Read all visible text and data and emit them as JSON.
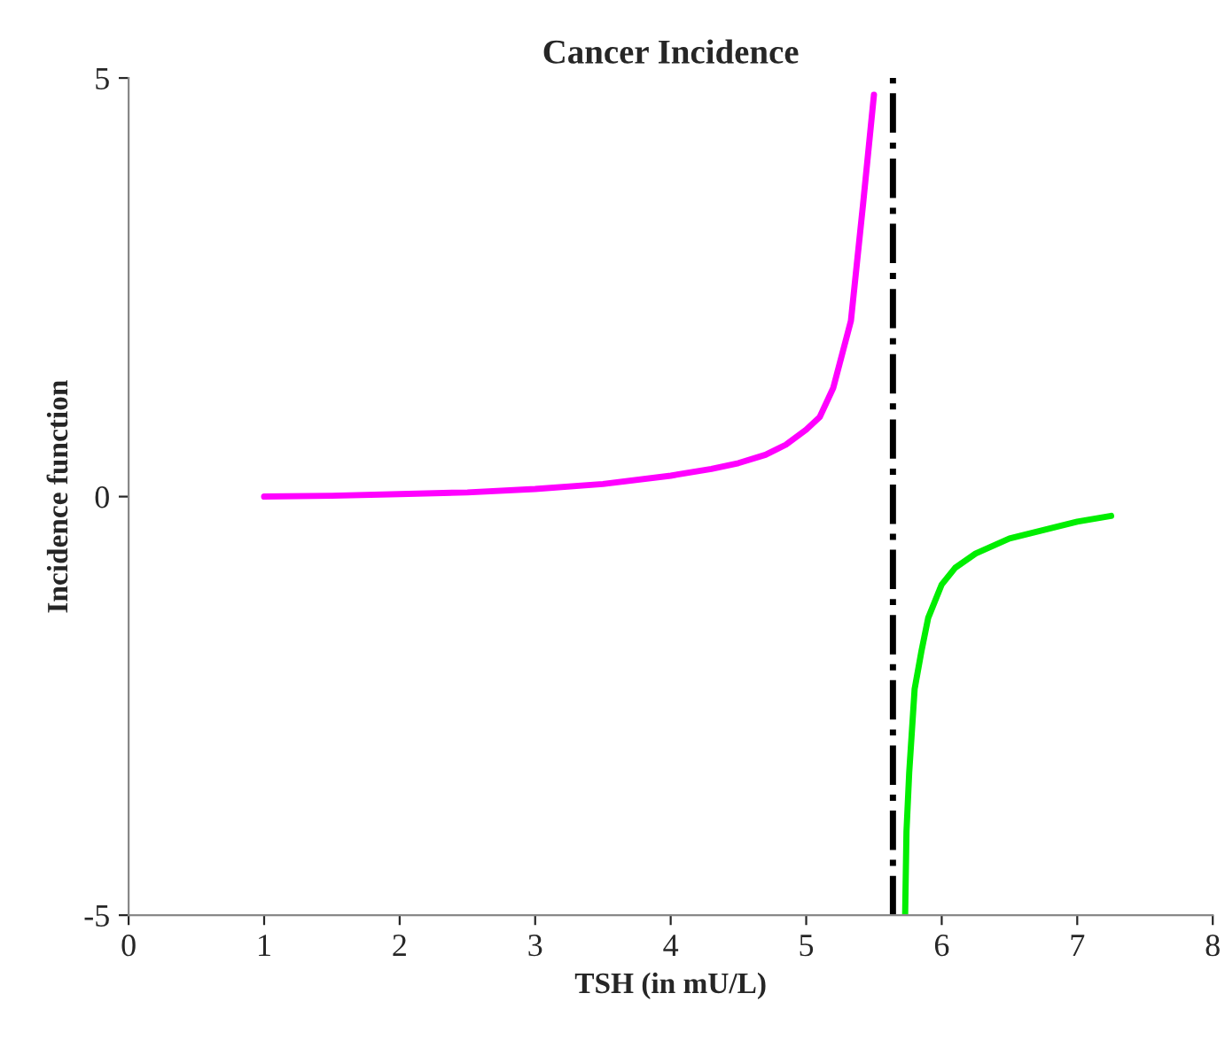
{
  "chart_data": {
    "type": "line",
    "title": "Cancer Incidence",
    "xlabel": "TSH (in mU/L)",
    "ylabel": "Incidence function",
    "xlim": [
      0,
      8
    ],
    "xticks": [
      0,
      1,
      2,
      3,
      4,
      5,
      6,
      7,
      8
    ],
    "ylim": [
      -5,
      5
    ],
    "yticks": [
      -5,
      0,
      5
    ],
    "grid": false,
    "legend": false,
    "line_style": "solid",
    "marker": "none",
    "series": [
      {
        "color": "#ff00ff",
        "x": [
          1,
          1.5,
          2,
          2.5,
          3,
          3.5,
          4,
          4.3,
          4.5,
          4.7,
          4.85,
          5.0,
          5.1,
          5.2,
          5.33,
          5.42,
          5.5
        ],
        "values": [
          0,
          0.01,
          0.03,
          0.05,
          0.09,
          0.15,
          0.25,
          0.33,
          0.4,
          0.5,
          0.62,
          0.8,
          0.95,
          1.3,
          2.1,
          3.5,
          4.8
        ]
      },
      {
        "color": "#00ee00",
        "x": [
          5.73,
          5.74,
          5.76,
          5.8,
          5.85,
          5.9,
          6.0,
          6.1,
          6.25,
          6.5,
          6.75,
          7.0,
          7.25
        ],
        "values": [
          -5,
          -4.0,
          -3.3,
          -2.3,
          -1.85,
          -1.45,
          -1.05,
          -0.85,
          -0.68,
          -0.5,
          -0.4,
          -0.3,
          -0.23
        ]
      }
    ],
    "ref_lines": [
      {
        "axis": "x",
        "value": 5.64,
        "color": "#000000",
        "line_style": "dashdot"
      }
    ]
  }
}
